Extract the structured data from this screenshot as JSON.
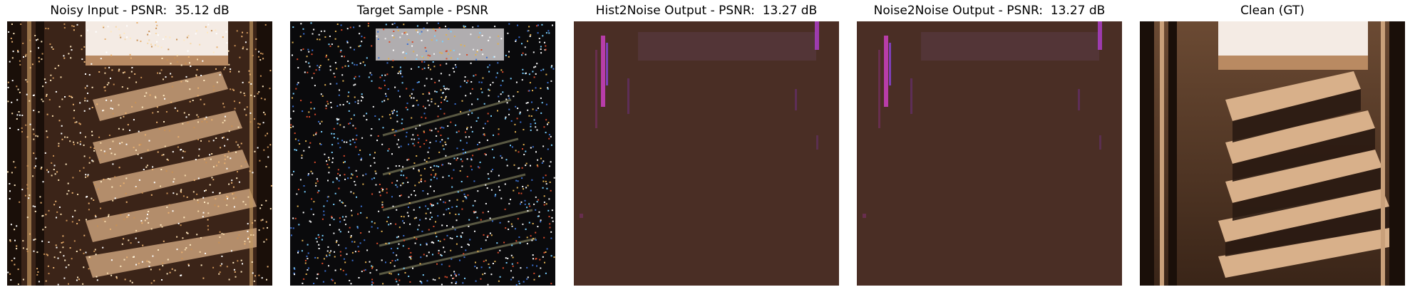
{
  "panels": [
    {
      "title": "Noisy Input - PSNR:  35.12 dB"
    },
    {
      "title": "Target Sample - PSNR"
    },
    {
      "title": "Hist2Noise Output - PSNR:  13.27 dB"
    },
    {
      "title": "Noise2Noise Output - PSNR:  13.27 dB"
    },
    {
      "title": "Clean (GT)"
    }
  ],
  "colors": {
    "background": "#ffffff",
    "flat_output": "#4a2e25",
    "stair_light": "#c9a07a",
    "stair_dark": "#2a1a12",
    "window": "#f5ede6"
  }
}
